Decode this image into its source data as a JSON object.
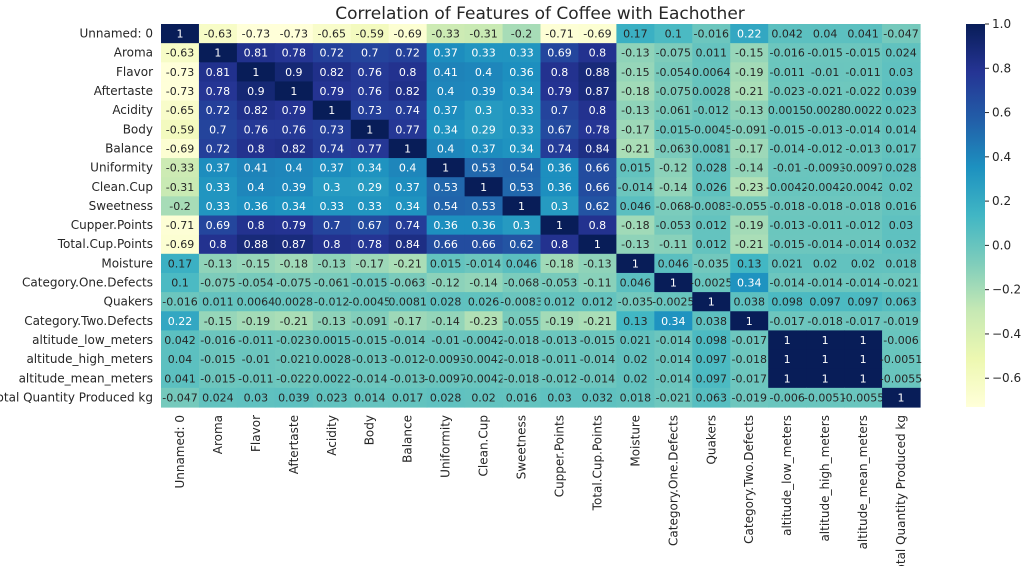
{
  "chart_data": {
    "type": "heatmap",
    "title": "Correlation of Features of Coffee with Eachother",
    "labels": [
      "Unnamed: 0",
      "Aroma",
      "Flavor",
      "Aftertaste",
      "Acidity",
      "Body",
      "Balance",
      "Uniformity",
      "Clean.Cup",
      "Sweetness",
      "Cupper.Points",
      "Total.Cup.Points",
      "Moisture",
      "Category.One.Defects",
      "Quakers",
      "Category.Two.Defects",
      "altitude_low_meters",
      "altitude_high_meters",
      "altitude_mean_meters",
      "Total Quantity Produced kg"
    ],
    "values": [
      [
        "1",
        "-0.63",
        "-0.73",
        "-0.73",
        "-0.65",
        "-0.59",
        "-0.69",
        "-0.33",
        "-0.31",
        "-0.2",
        "-0.71",
        "-0.69",
        "0.17",
        "0.1",
        "-0.016",
        "0.22",
        "0.042",
        "0.04",
        "0.041",
        "-0.047"
      ],
      [
        "-0.63",
        "1",
        "0.81",
        "0.78",
        "0.72",
        "0.7",
        "0.72",
        "0.37",
        "0.33",
        "0.33",
        "0.69",
        "0.8",
        "-0.13",
        "-0.075",
        "0.011",
        "-0.15",
        "-0.016",
        "-0.015",
        "-0.015",
        "0.024"
      ],
      [
        "-0.73",
        "0.81",
        "1",
        "0.9",
        "0.82",
        "0.76",
        "0.8",
        "0.41",
        "0.4",
        "0.36",
        "0.8",
        "0.88",
        "-0.15",
        "-0.054",
        "0.0064",
        "-0.19",
        "-0.011",
        "-0.01",
        "-0.011",
        "0.03"
      ],
      [
        "-0.73",
        "0.78",
        "0.9",
        "1",
        "0.79",
        "0.76",
        "0.82",
        "0.4",
        "0.39",
        "0.34",
        "0.79",
        "0.87",
        "-0.18",
        "-0.075",
        "0.0028",
        "-0.21",
        "-0.023",
        "-0.021",
        "-0.022",
        "0.039"
      ],
      [
        "-0.65",
        "0.72",
        "0.82",
        "0.79",
        "1",
        "0.73",
        "0.74",
        "0.37",
        "0.3",
        "0.33",
        "0.7",
        "0.8",
        "-0.13",
        "-0.061",
        "-0.012",
        "-0.13",
        "0.0015",
        "0.0028",
        "0.0022",
        "0.023"
      ],
      [
        "-0.59",
        "0.7",
        "0.76",
        "0.76",
        "0.73",
        "1",
        "0.77",
        "0.34",
        "0.29",
        "0.33",
        "0.67",
        "0.78",
        "-0.17",
        "-0.015",
        "-0.0045",
        "-0.091",
        "-0.015",
        "-0.013",
        "-0.014",
        "0.014"
      ],
      [
        "-0.69",
        "0.72",
        "0.8",
        "0.82",
        "0.74",
        "0.77",
        "1",
        "0.4",
        "0.37",
        "0.34",
        "0.74",
        "0.84",
        "-0.21",
        "-0.063",
        "0.0081",
        "-0.17",
        "-0.014",
        "-0.012",
        "-0.013",
        "0.017"
      ],
      [
        "-0.33",
        "0.37",
        "0.41",
        "0.4",
        "0.37",
        "0.34",
        "0.4",
        "1",
        "0.53",
        "0.54",
        "0.36",
        "0.66",
        "0.015",
        "-0.12",
        "0.028",
        "-0.14",
        "-0.01",
        "-0.0093",
        "-0.0097",
        "0.028"
      ],
      [
        "-0.31",
        "0.33",
        "0.4",
        "0.39",
        "0.3",
        "0.29",
        "0.37",
        "0.53",
        "1",
        "0.53",
        "0.36",
        "0.66",
        "-0.014",
        "-0.14",
        "0.026",
        "-0.23",
        "-0.0042",
        "-0.0042",
        "-0.0042",
        "0.02"
      ],
      [
        "-0.2",
        "0.33",
        "0.36",
        "0.34",
        "0.33",
        "0.33",
        "0.34",
        "0.54",
        "0.53",
        "1",
        "0.3",
        "0.62",
        "0.046",
        "-0.068",
        "-0.0083",
        "-0.055",
        "-0.018",
        "-0.018",
        "-0.018",
        "0.016"
      ],
      [
        "-0.71",
        "0.69",
        "0.8",
        "0.79",
        "0.7",
        "0.67",
        "0.74",
        "0.36",
        "0.36",
        "0.3",
        "1",
        "0.8",
        "-0.18",
        "-0.053",
        "0.012",
        "-0.19",
        "-0.013",
        "-0.011",
        "-0.012",
        "0.03"
      ],
      [
        "-0.69",
        "0.8",
        "0.88",
        "0.87",
        "0.8",
        "0.78",
        "0.84",
        "0.66",
        "0.66",
        "0.62",
        "0.8",
        "1",
        "-0.13",
        "-0.11",
        "0.012",
        "-0.21",
        "-0.015",
        "-0.014",
        "-0.014",
        "0.032"
      ],
      [
        "0.17",
        "-0.13",
        "-0.15",
        "-0.18",
        "-0.13",
        "-0.17",
        "-0.21",
        "0.015",
        "-0.014",
        "0.046",
        "-0.18",
        "-0.13",
        "1",
        "0.046",
        "-0.035",
        "0.13",
        "0.021",
        "0.02",
        "0.02",
        "0.018"
      ],
      [
        "0.1",
        "-0.075",
        "-0.054",
        "-0.075",
        "-0.061",
        "-0.015",
        "-0.063",
        "-0.12",
        "-0.14",
        "-0.068",
        "-0.053",
        "-0.11",
        "0.046",
        "1",
        "-0.0025",
        "0.34",
        "-0.014",
        "-0.014",
        "-0.014",
        "-0.021"
      ],
      [
        "-0.016",
        "0.011",
        "0.0064",
        "0.0028",
        "-0.012",
        "-0.0045",
        "0.0081",
        "0.028",
        "0.026",
        "-0.0083",
        "0.012",
        "0.012",
        "-0.035",
        "-0.0025",
        "1",
        "0.038",
        "0.098",
        "0.097",
        "0.097",
        "0.063"
      ],
      [
        "0.22",
        "-0.15",
        "-0.19",
        "-0.21",
        "-0.13",
        "-0.091",
        "-0.17",
        "-0.14",
        "-0.23",
        "-0.055",
        "-0.19",
        "-0.21",
        "0.13",
        "0.34",
        "0.038",
        "1",
        "-0.017",
        "-0.018",
        "-0.017",
        "-0.019"
      ],
      [
        "0.042",
        "-0.016",
        "-0.011",
        "-0.023",
        "0.0015",
        "-0.015",
        "-0.014",
        "-0.01",
        "-0.0042",
        "-0.018",
        "-0.013",
        "-0.015",
        "0.021",
        "-0.014",
        "0.098",
        "-0.017",
        "1",
        "1",
        "1",
        "-0.006"
      ],
      [
        "0.04",
        "-0.015",
        "-0.01",
        "-0.021",
        "0.0028",
        "-0.013",
        "-0.012",
        "-0.0093",
        "-0.0042",
        "-0.018",
        "-0.011",
        "-0.014",
        "0.02",
        "-0.014",
        "0.097",
        "-0.018",
        "1",
        "1",
        "1",
        "-0.0051"
      ],
      [
        "0.041",
        "-0.015",
        "-0.011",
        "-0.022",
        "0.0022",
        "-0.014",
        "-0.013",
        "-0.0097",
        "-0.0042",
        "-0.018",
        "-0.012",
        "-0.014",
        "0.02",
        "-0.014",
        "0.097",
        "-0.017",
        "1",
        "1",
        "1",
        "-0.0055"
      ],
      [
        "-0.047",
        "0.024",
        "0.03",
        "0.039",
        "0.023",
        "0.014",
        "0.017",
        "0.028",
        "0.02",
        "0.016",
        "0.03",
        "0.032",
        "0.018",
        "-0.021",
        "0.063",
        "-0.019",
        "-0.006",
        "-0.0051",
        "-0.0055",
        "1"
      ]
    ],
    "colorbar": {
      "colormap": "YlGnBu",
      "vmin": -0.73,
      "vmax": 1.0,
      "ticks": [
        "1.0",
        "0.8",
        "0.6",
        "0.4",
        "0.2",
        "0.0",
        "−0.2",
        "−0.4",
        "−0.6"
      ],
      "tick_values": [
        1.0,
        0.8,
        0.6,
        0.4,
        0.2,
        0.0,
        -0.2,
        -0.4,
        -0.6
      ]
    },
    "annotated": true,
    "grid": false
  }
}
